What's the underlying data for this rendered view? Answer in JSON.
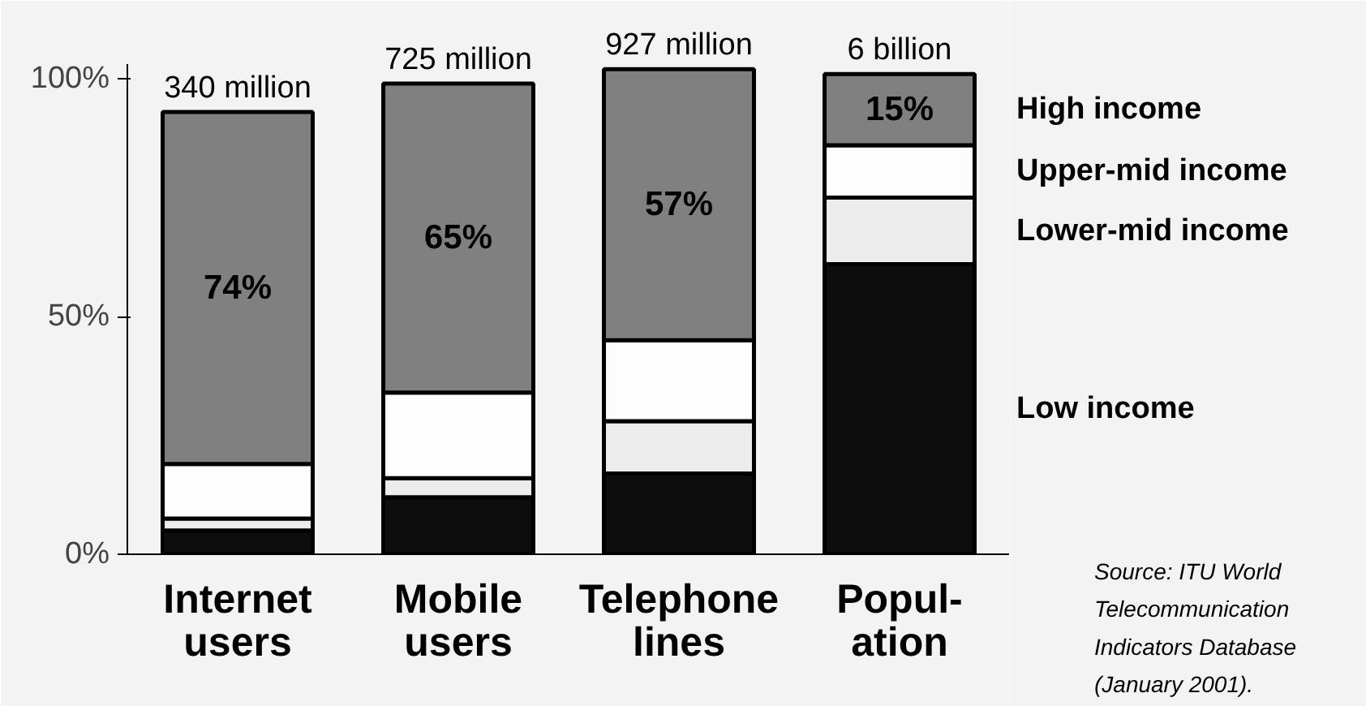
{
  "chart_data": {
    "type": "bar",
    "stacked": true,
    "categories": [
      "Internet\nusers",
      "Mobile\nusers",
      "Telephone\nlines",
      "Popul-\nation"
    ],
    "series": [
      {
        "name": "Low income",
        "color": "#0d0d0d",
        "values": [
          5,
          12,
          17,
          61
        ]
      },
      {
        "name": "Lower-mid income",
        "color": "#ececec",
        "values": [
          2.5,
          4,
          11,
          14
        ]
      },
      {
        "name": "Upper-mid income",
        "color": "#fdfdfd",
        "values": [
          11.5,
          18,
          17,
          11
        ]
      },
      {
        "name": "High income",
        "color": "#808080",
        "values": [
          74,
          65,
          57,
          15
        ],
        "value_labels": [
          "74%",
          "65%",
          "57%",
          "15%"
        ]
      }
    ],
    "ylim": [
      0,
      103
    ],
    "yticks": [
      {
        "value": 0,
        "label": "0%"
      },
      {
        "value": 50,
        "label": "50%"
      },
      {
        "value": 100,
        "label": "100%"
      }
    ],
    "grid": false,
    "legend": false,
    "annotations": [
      {
        "text": "340 million",
        "x": "Internet\nusers",
        "y": 93
      },
      {
        "text": "725 million",
        "x": "Mobile\nusers",
        "y": 99
      },
      {
        "text": "927 million",
        "x": "Telephone\nlines",
        "y": 102
      },
      {
        "text": "6 billion",
        "x": "Popul-\nation",
        "y": 101
      },
      "Source: ITU World\nTelecommunication\nIndicators Database\n(January 2001)."
    ]
  }
}
